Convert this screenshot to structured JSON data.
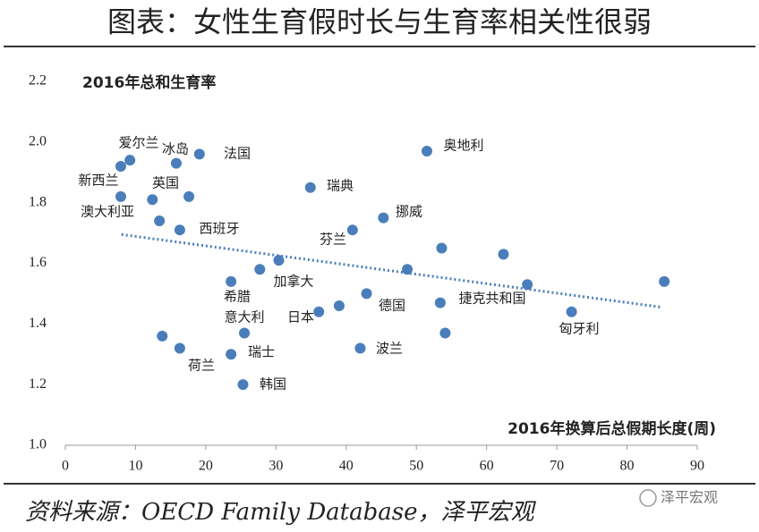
{
  "header": {
    "title": "图表：女性生育假时长与生育率相关性很弱"
  },
  "chart_data": {
    "type": "scatter",
    "ylabel": "2016年总和生育率",
    "xlabel": "2016年换算后总假期长度(周)",
    "xlim": [
      0,
      90
    ],
    "xticks": [
      0,
      10,
      20,
      30,
      40,
      50,
      60,
      70,
      80,
      90
    ],
    "ylim": [
      1,
      2.2
    ],
    "yticks": [
      {
        "value": 1,
        "label": "1.0"
      },
      1.2,
      1.4,
      1.6,
      1.8,
      {
        "value": 2,
        "label": "2.0"
      },
      2.2
    ],
    "grid": false,
    "series": [
      {
        "color": "#4a7ebb",
        "x": [
          7.9,
          9.2,
          15.8,
          19.1,
          7.9,
          12.4,
          17.6,
          13.4,
          16.3,
          34.9,
          51.5,
          45.3,
          40.9,
          53.6,
          62.4,
          48.7,
          30.4,
          27.7,
          23.6,
          65.8,
          85.3,
          53.4,
          42.9,
          39.0,
          36.1,
          72.1,
          25.5,
          54.1,
          13.8,
          16.3,
          42.0,
          23.6,
          25.3
        ],
        "values": [
          1.92,
          1.94,
          1.93,
          1.96,
          1.82,
          1.81,
          1.82,
          1.74,
          1.71,
          1.85,
          1.97,
          1.75,
          1.71,
          1.65,
          1.63,
          1.58,
          1.61,
          1.58,
          1.54,
          1.53,
          1.54,
          1.47,
          1.5,
          1.46,
          1.44,
          1.44,
          1.37,
          1.37,
          1.36,
          1.32,
          1.32,
          1.3,
          1.2
        ],
        "point_labels": [
          "新西兰",
          "爱尔兰",
          "冰岛",
          "法国",
          "澳大利亚",
          "英国",
          null,
          null,
          "西班牙",
          "瑞典",
          "奥地利",
          "挪威",
          "芬兰",
          null,
          null,
          null,
          "加拿大",
          null,
          "希腊",
          null,
          null,
          "捷克共和国",
          "德国",
          null,
          "日本",
          "匈牙利",
          "意大利",
          null,
          null,
          "荷兰",
          "波兰",
          "瑞士",
          "韩国"
        ]
      }
    ],
    "trendline": {
      "color": "#4a7ebb",
      "x": [
        8,
        85
      ],
      "values": [
        1.695,
        1.455
      ]
    }
  },
  "footer": {
    "source": "资料来源：OECD Family Database，泽平宏观",
    "watermark": "泽平宏观"
  }
}
